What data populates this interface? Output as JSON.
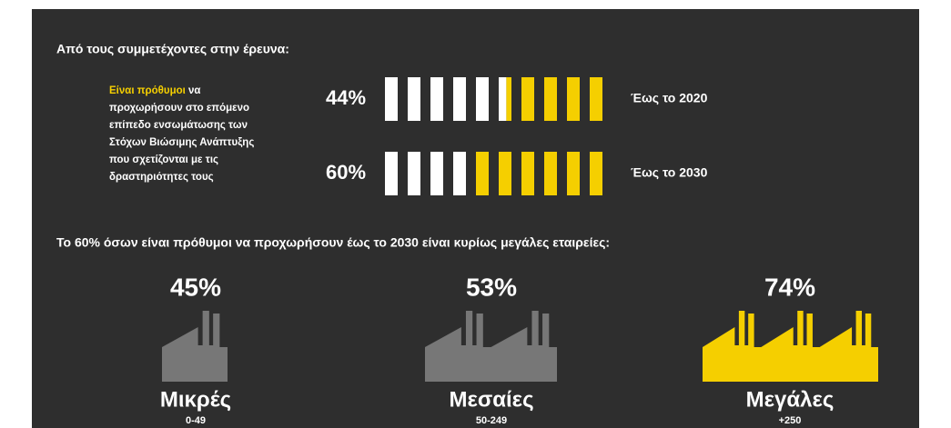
{
  "intro": "Από τους συμμετέχοντες στην έρευνα:",
  "statement": {
    "highlight": "Είναι πρόθυμοι",
    "lines": [
      " να",
      "προχωρήσουν στο επόμενο",
      "επίπεδο ενσωμάτωσης των",
      "Στόχων Βιώσιμης Ανάπτυξης",
      "που σχετίζονται με τις",
      "δραστηριότητες τους"
    ]
  },
  "rows": [
    {
      "value": 44,
      "value_label": "44%",
      "period": "Έως το 2020"
    },
    {
      "value": 60,
      "value_label": "60%",
      "period": "Έως το 2030"
    }
  ],
  "heading": "Το 60% όσων είναι πρόθυμοι να προχωρήσουν έως το 2030 είναι κυρίως μεγάλες εταιρείες:",
  "companies": [
    {
      "value": 45,
      "value_label": "45%",
      "name": "Μικρές",
      "range": "0-49"
    },
    {
      "value": 53,
      "value_label": "53%",
      "name": "Μεσαίες",
      "range": "50-249"
    },
    {
      "value": 74,
      "value_label": "74%",
      "name": "Μεγάλες",
      "range": "+250"
    }
  ]
}
